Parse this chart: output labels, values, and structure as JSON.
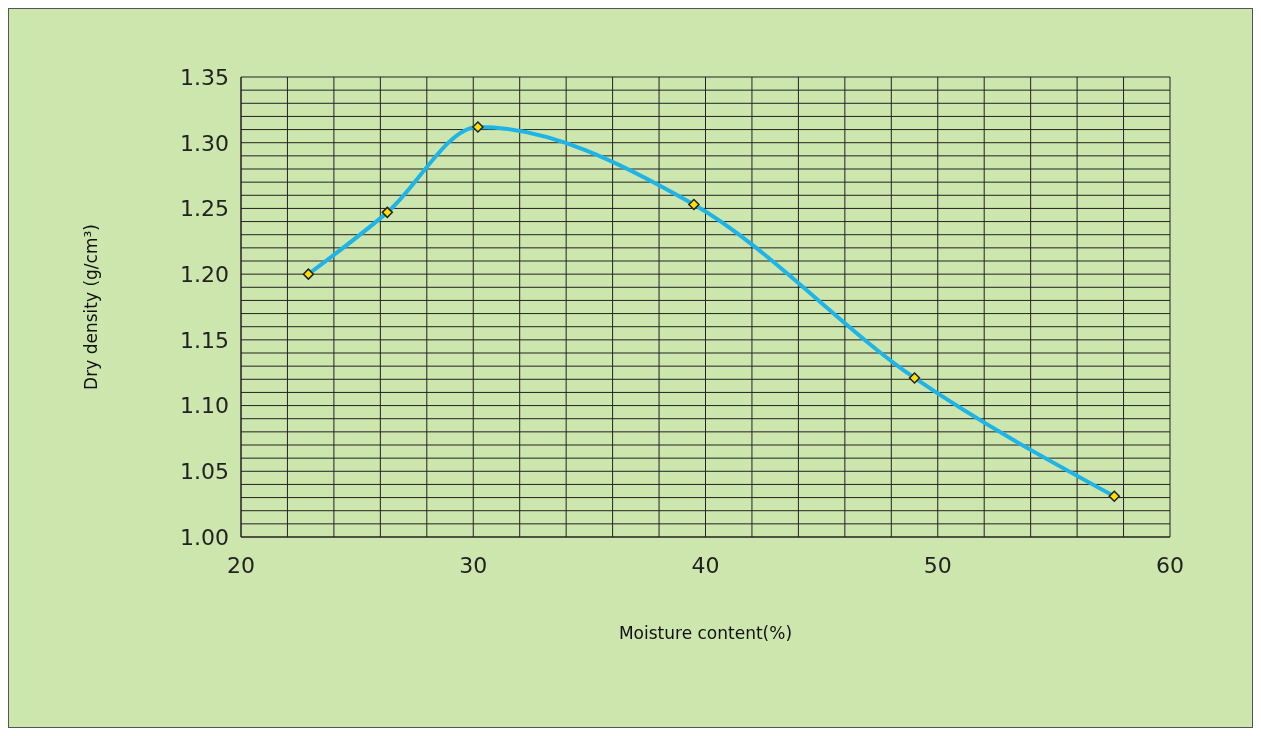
{
  "chart_data": {
    "type": "line",
    "xlabel": "Moisture content(%)",
    "ylabel": "Dry density (g/cm³)",
    "x": [
      22.9,
      26.3,
      30.2,
      39.5,
      49.0,
      57.6
    ],
    "series": [
      {
        "color": "#1fb4e8",
        "values": [
          1.2,
          1.247,
          1.312,
          1.253,
          1.121,
          1.031
        ]
      }
    ],
    "xlim": [
      20,
      60
    ],
    "ylim": [
      1.0,
      1.35
    ],
    "xticks": [
      20,
      {
        "value": 22,
        "label": null
      },
      {
        "value": 24,
        "label": null
      },
      {
        "value": 26,
        "label": null
      },
      {
        "value": 28,
        "label": null
      },
      30,
      {
        "value": 32,
        "label": null
      },
      {
        "value": 34,
        "label": null
      },
      {
        "value": 36,
        "label": null
      },
      {
        "value": 38,
        "label": null
      },
      40,
      {
        "value": 42,
        "label": null
      },
      {
        "value": 44,
        "label": null
      },
      {
        "value": 46,
        "label": null
      },
      {
        "value": 48,
        "label": null
      },
      50,
      {
        "value": 52,
        "label": null
      },
      {
        "value": 54,
        "label": null
      },
      {
        "value": 56,
        "label": null
      },
      {
        "value": 58,
        "label": null
      },
      60
    ],
    "yticks": [
      {
        "value": 1.0,
        "label": "1.00"
      },
      {
        "value": 1.01,
        "label": null
      },
      {
        "value": 1.02,
        "label": null
      },
      {
        "value": 1.03,
        "label": null
      },
      {
        "value": 1.04,
        "label": null
      },
      {
        "value": 1.05,
        "label": "1.05"
      },
      {
        "value": 1.06,
        "label": null
      },
      {
        "value": 1.07,
        "label": null
      },
      {
        "value": 1.08,
        "label": null
      },
      {
        "value": 1.09,
        "label": null
      },
      {
        "value": 1.1,
        "label": "1.10"
      },
      {
        "value": 1.11,
        "label": null
      },
      {
        "value": 1.12,
        "label": null
      },
      {
        "value": 1.13,
        "label": null
      },
      {
        "value": 1.14,
        "label": null
      },
      {
        "value": 1.15,
        "label": "1.15"
      },
      {
        "value": 1.16,
        "label": null
      },
      {
        "value": 1.17,
        "label": null
      },
      {
        "value": 1.18,
        "label": null
      },
      {
        "value": 1.19,
        "label": null
      },
      {
        "value": 1.2,
        "label": "1.20"
      },
      {
        "value": 1.21,
        "label": null
      },
      {
        "value": 1.22,
        "label": null
      },
      {
        "value": 1.23,
        "label": null
      },
      {
        "value": 1.24,
        "label": null
      },
      {
        "value": 1.25,
        "label": "1.25"
      },
      {
        "value": 1.26,
        "label": null
      },
      {
        "value": 1.27,
        "label": null
      },
      {
        "value": 1.28,
        "label": null
      },
      {
        "value": 1.29,
        "label": null
      },
      {
        "value": 1.3,
        "label": "1.30"
      },
      {
        "value": 1.31,
        "label": null
      },
      {
        "value": 1.32,
        "label": null
      },
      {
        "value": 1.33,
        "label": null
      },
      {
        "value": 1.34,
        "label": null
      },
      {
        "value": 1.35,
        "label": "1.35"
      }
    ],
    "grid": true,
    "marker": "diamond",
    "line_style": "solid"
  }
}
